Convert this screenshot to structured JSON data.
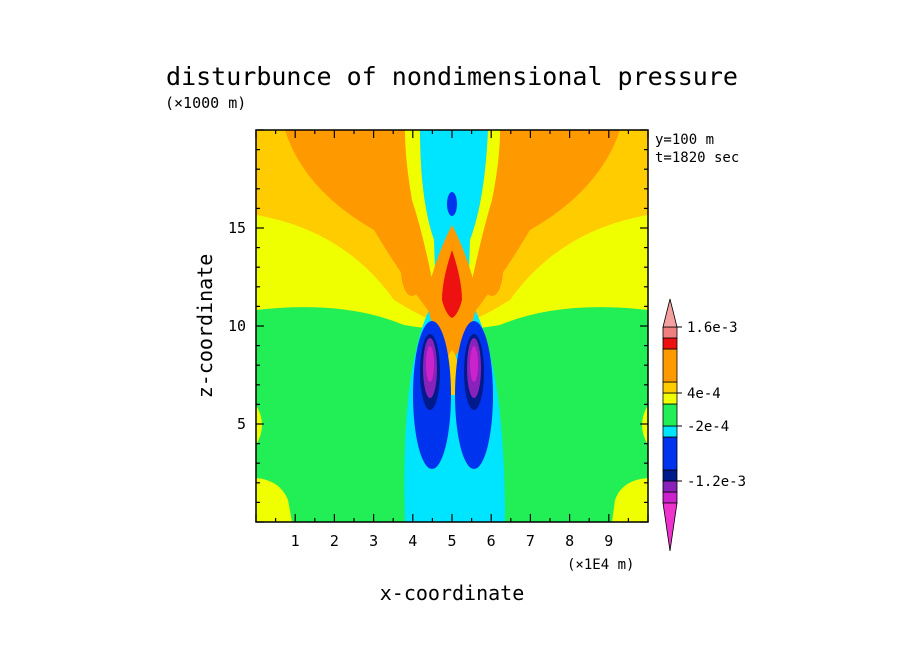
{
  "chart_data": {
    "type": "heatmap",
    "title": "disturbunce of nondimensional pressure",
    "ylabel": "z-coordinate",
    "xlabel": "x-coordinate",
    "y_units": "(×1000 m)",
    "x_units": "(×1E4 m)",
    "annotations": [
      "y=100 m",
      "t=1820 sec"
    ],
    "xlim": [
      0,
      10
    ],
    "ylim": [
      0,
      20
    ],
    "x_ticks": [
      1,
      2,
      3,
      4,
      5,
      6,
      7,
      8,
      9
    ],
    "y_ticks": [
      5,
      10,
      15
    ],
    "colorbar": {
      "levels": [
        -0.0016,
        -0.0014,
        -0.0012,
        -0.001,
        -0.0008,
        -0.0006,
        -0.0004,
        -0.0002,
        0,
        0.0002,
        0.0004,
        0.0006,
        0.0008,
        0.001,
        0.0012,
        0.0014,
        0.0016
      ],
      "colors": [
        "#cc22cc",
        "#8822bb",
        "#001a8c",
        "#0033ee",
        "#00e5ff",
        "#22ee55",
        "#f0ff00",
        "#ffcc00",
        "#ff9900",
        "#ee1111",
        "#f08080"
      ],
      "labels": [
        {
          "text": "1.6e-3",
          "value": 0.0016
        },
        {
          "text": "4e-4",
          "value": 0.0004
        },
        {
          "text": "-2e-4",
          "value": -0.0002
        },
        {
          "text": "-1.2e-3",
          "value": -0.0012
        }
      ]
    },
    "field_regions": [
      {
        "name": "upper-yellow",
        "approx": "z 11–20, outer x"
      },
      {
        "name": "orange-wings",
        "approx": "z 11–20, x 1.5–8.5"
      },
      {
        "name": "central-cyan-column",
        "approx": "x 4.2–5.8, all z"
      },
      {
        "name": "red-core",
        "approx": "x≈5, z≈11–13"
      },
      {
        "name": "blue-lobes",
        "approx": "x≈4.5 and 5.5, z≈3–10"
      },
      {
        "name": "magenta-cores",
        "approx": "x≈4.5 and 5.5, z≈7–9"
      },
      {
        "name": "lower-green",
        "approx": "z 0–10, outer x"
      }
    ]
  }
}
